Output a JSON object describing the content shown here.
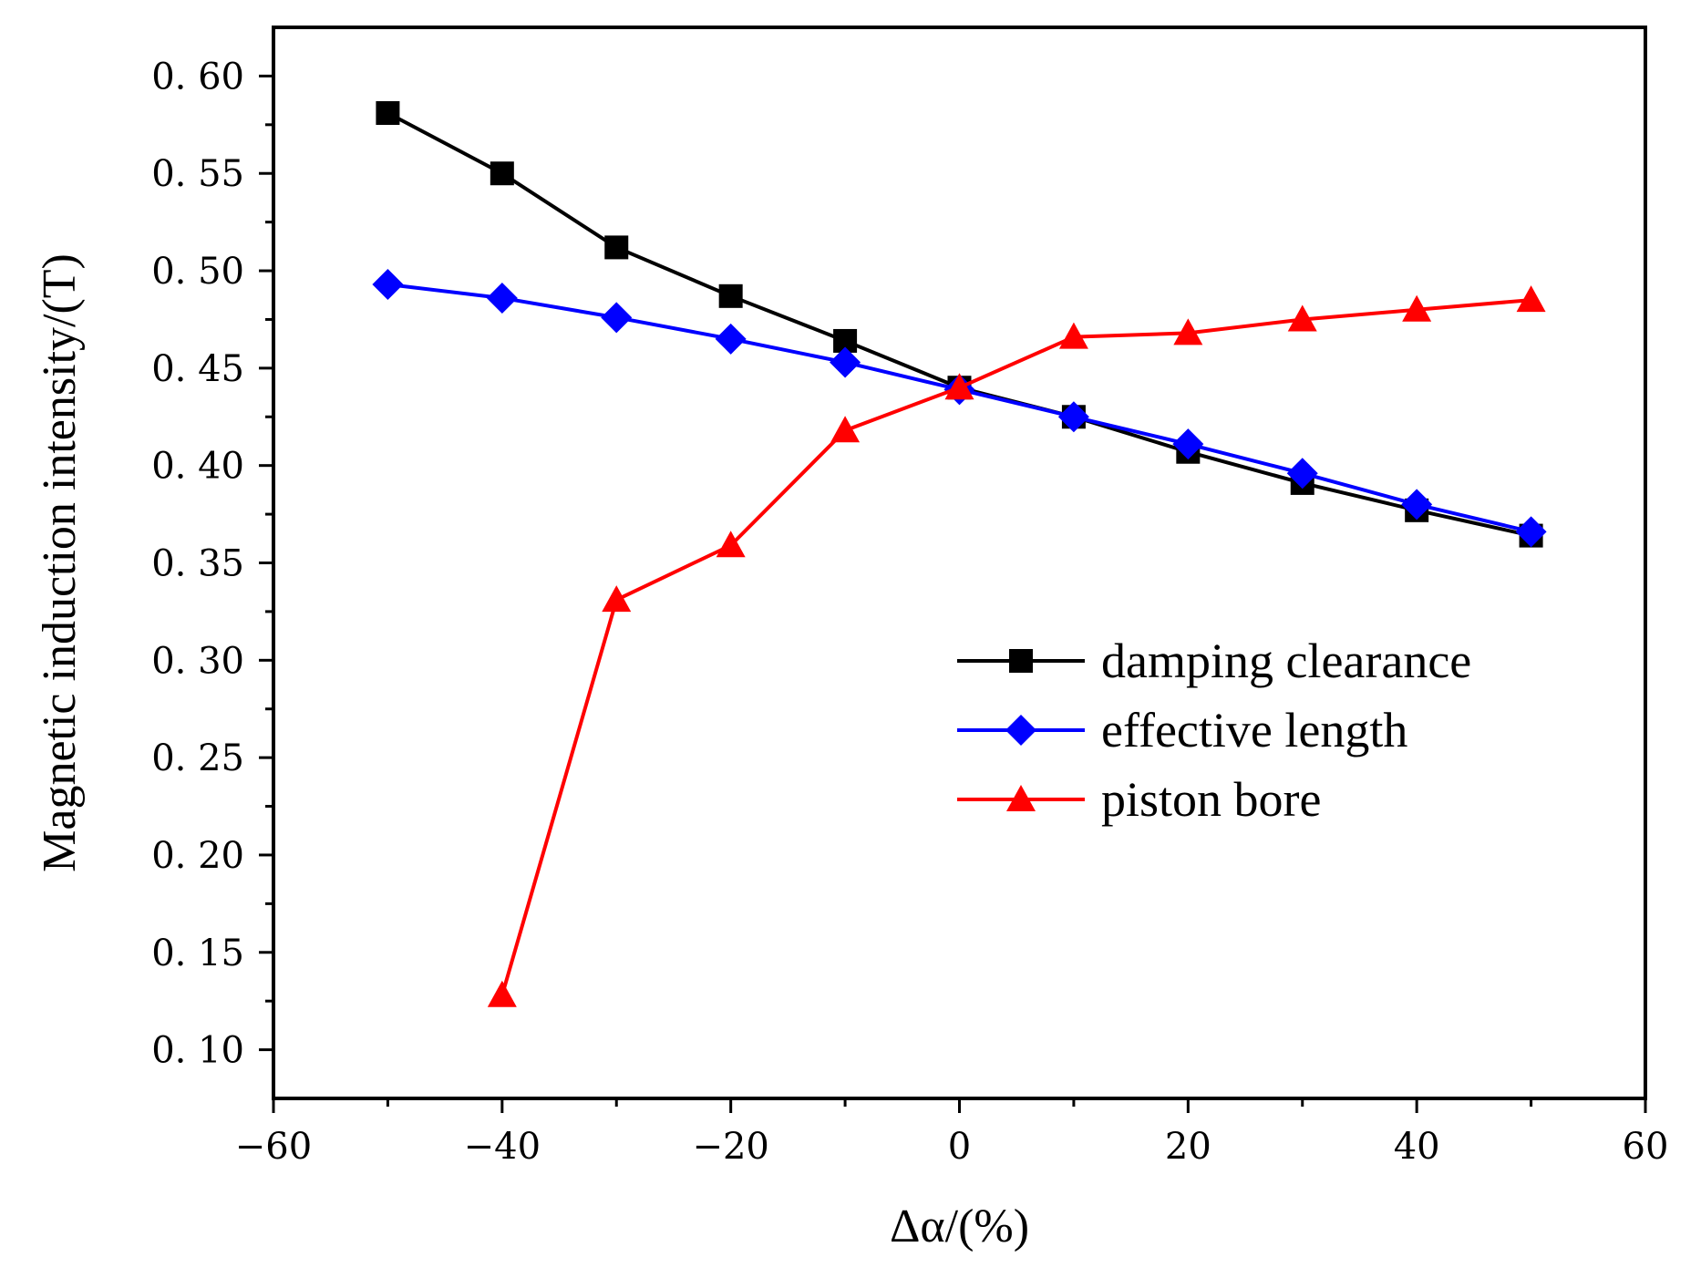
{
  "chart_data": {
    "type": "line",
    "title": "",
    "xlabel": "Δα/(%)",
    "ylabel": "Magnetic induction intensity/(T)",
    "xlim": [
      -60,
      60
    ],
    "ylim": [
      0.075,
      0.625
    ],
    "x_ticks": [
      -60,
      -40,
      -20,
      0,
      20,
      40,
      60
    ],
    "x_tick_labels": [
      "−60",
      "−40",
      "−20",
      "0",
      "20",
      "40",
      "60"
    ],
    "y_ticks": [
      0.1,
      0.15,
      0.2,
      0.25,
      0.3,
      0.35,
      0.4,
      0.45,
      0.5,
      0.55,
      0.6
    ],
    "y_tick_labels": [
      "0. 10",
      "0. 15",
      "0. 20",
      "0. 25",
      "0. 30",
      "0. 35",
      "0. 40",
      "0. 45",
      "0. 50",
      "0. 55",
      "0. 60"
    ],
    "grid": false,
    "legend_position": "center-right",
    "series": [
      {
        "name": "damping clearance",
        "color": "#000000",
        "marker": "square",
        "x": [
          -50,
          -40,
          -30,
          -20,
          -10,
          0,
          10,
          20,
          30,
          40,
          50
        ],
        "y": [
          0.581,
          0.55,
          0.512,
          0.487,
          0.464,
          0.44,
          0.425,
          0.407,
          0.391,
          0.377,
          0.364
        ]
      },
      {
        "name": "effective length",
        "color": "#0000ff",
        "marker": "diamond",
        "x": [
          -50,
          -40,
          -30,
          -20,
          -10,
          0,
          10,
          20,
          30,
          40,
          50
        ],
        "y": [
          0.493,
          0.486,
          0.476,
          0.465,
          0.453,
          0.439,
          0.425,
          0.411,
          0.396,
          0.38,
          0.366
        ]
      },
      {
        "name": "piston bore",
        "color": "#ff0000",
        "marker": "triangle",
        "x": [
          -40,
          -30,
          -20,
          -10,
          0,
          10,
          20,
          30,
          40,
          50
        ],
        "y": [
          0.128,
          0.331,
          0.359,
          0.418,
          0.44,
          0.466,
          0.468,
          0.475,
          0.48,
          0.485
        ]
      }
    ]
  }
}
